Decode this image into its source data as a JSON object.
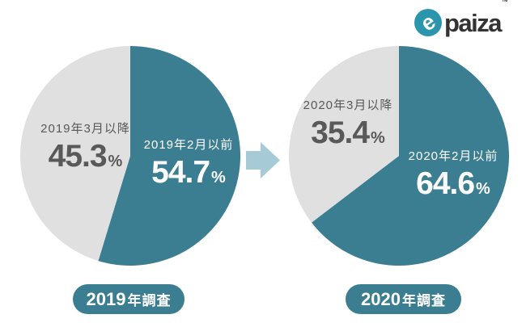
{
  "logo": {
    "text": "paiza",
    "tm": "™",
    "glyph": "e",
    "icon_color": "#2b95ad",
    "text_color": "#333333"
  },
  "arrow": {
    "color": "#a6cbd7",
    "direction": "right"
  },
  "colors": {
    "accent_teal": "#3b7e92",
    "slice_gray": "#e0e0e0",
    "label_dark": "#595959"
  },
  "chart_data": [
    {
      "type": "pie",
      "title": {
        "year": "2019",
        "suffix": "年調査"
      },
      "start_angle_deg": 0,
      "direction": "clockwise",
      "legend": "none",
      "slices": [
        {
          "label": "2019年2月以前",
          "value": 54.7,
          "unit": "%",
          "color": "#3b7e92",
          "label_color": "#ffffff"
        },
        {
          "label": "2019年3月以降",
          "value": 45.3,
          "unit": "%",
          "color": "#e0e0e0",
          "label_color": "#595959"
        }
      ]
    },
    {
      "type": "pie",
      "title": {
        "year": "2020",
        "suffix": "年調査"
      },
      "start_angle_deg": 0,
      "direction": "clockwise",
      "legend": "none",
      "slices": [
        {
          "label": "2020年2月以前",
          "value": 64.6,
          "unit": "%",
          "color": "#3b7e92",
          "label_color": "#ffffff"
        },
        {
          "label": "2020年3月以降",
          "value": 35.4,
          "unit": "%",
          "color": "#e0e0e0",
          "label_color": "#595959"
        }
      ]
    }
  ]
}
